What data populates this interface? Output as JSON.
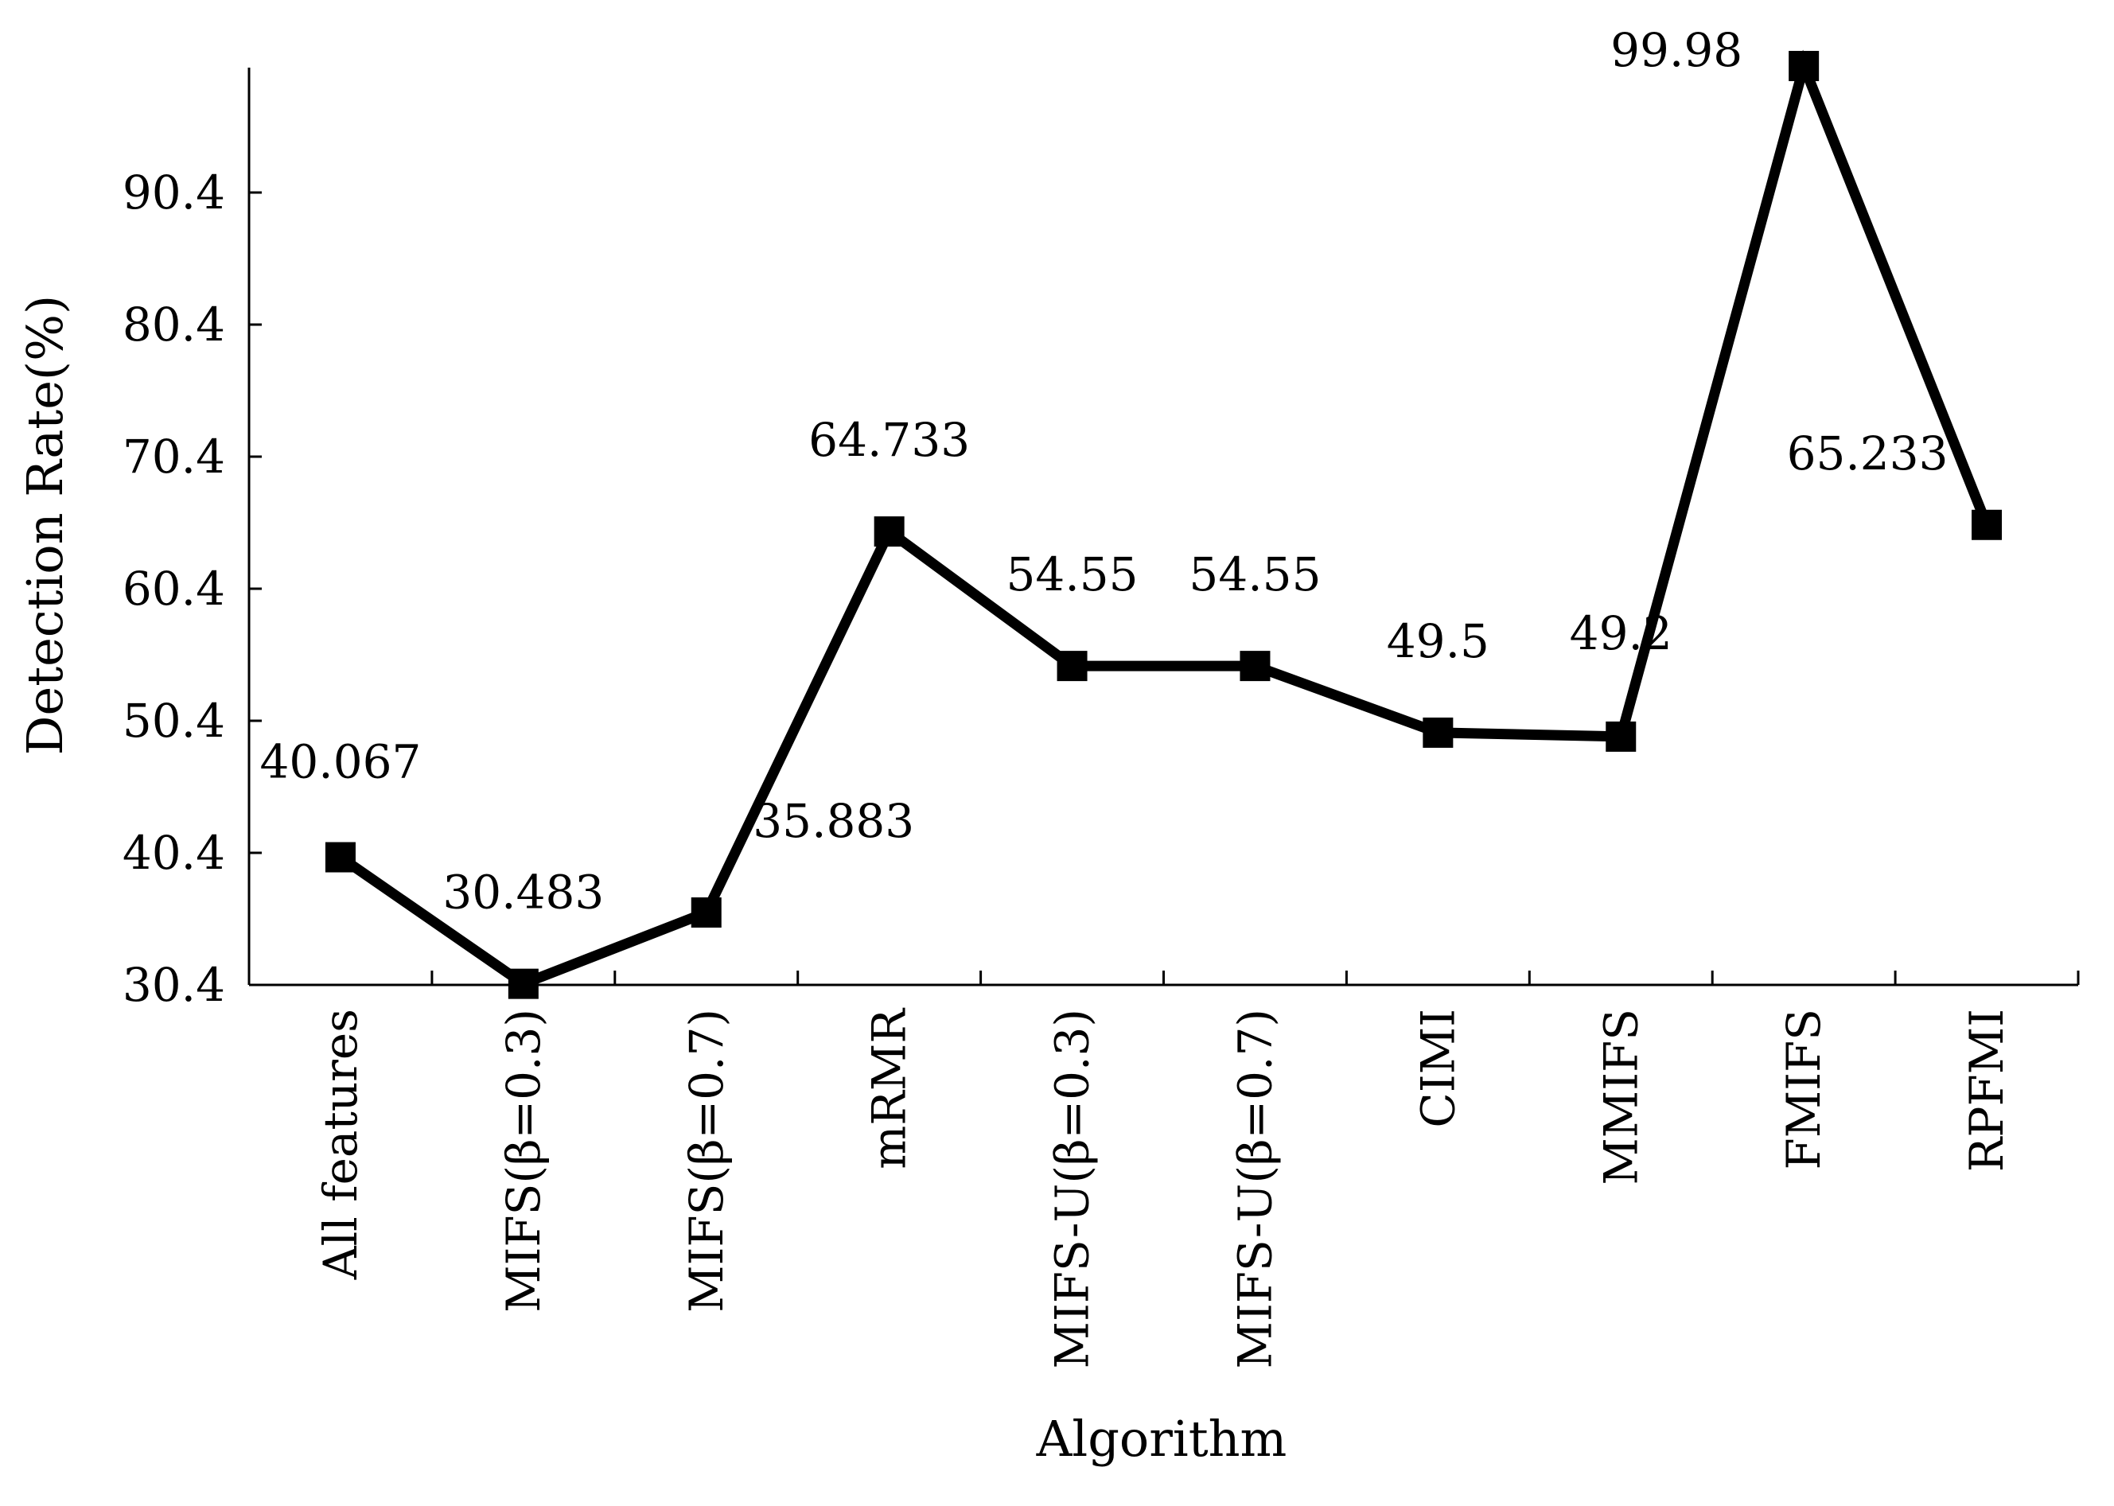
{
  "chart_data": {
    "type": "line",
    "xlabel": "Algorithm",
    "ylabel": "Detection Rate(%)",
    "ylim": [
      30.4,
      100.4
    ],
    "yticks": [
      30.4,
      40.4,
      50.4,
      60.4,
      70.4,
      80.4,
      90.4
    ],
    "ytick_labels": [
      "30.4",
      "40.4",
      "50.4",
      "60.4",
      "70.4",
      "80.4",
      "90.4"
    ],
    "categories": [
      "All features",
      "MIFS(β=0.3)",
      "MIFS(β=0.7)",
      "mRMR",
      "MIFS-U(β=0.3)",
      "MIFS-U(β=0.7)",
      "CIMI",
      "MMIFS",
      "FMIFS",
      "RPFMI"
    ],
    "series": [
      {
        "values": [
          40.067,
          30.483,
          35.883,
          64.733,
          54.55,
          54.55,
          49.5,
          49.2,
          99.98,
          65.233
        ],
        "data_labels": [
          "40.067",
          "30.483",
          "35.883",
          "64.733",
          "54.55",
          "54.55",
          "49.5",
          "49.2",
          "99.98",
          "65.233"
        ],
        "color": "#000000",
        "marker": "square"
      }
    ],
    "grid": false,
    "legend": "none"
  }
}
